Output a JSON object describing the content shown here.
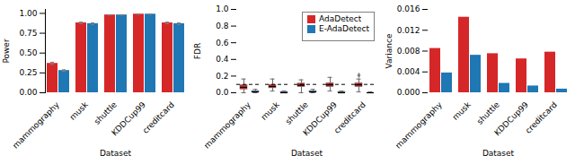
{
  "chart_data": [
    {
      "type": "bar",
      "categories": [
        "mammography",
        "musk",
        "shuttle",
        "KDDCup99",
        "creditcard"
      ],
      "series": [
        {
          "color": "#d62728",
          "values": [
            0.37,
            0.88,
            0.98,
            0.99,
            0.88
          ],
          "errors": [
            0.015,
            0.01,
            0.003,
            0.003,
            0.01
          ]
        },
        {
          "color": "#1f77b4",
          "values": [
            0.28,
            0.87,
            0.98,
            0.99,
            0.87
          ],
          "errors": [
            0.01,
            0.01,
            0.003,
            0.003,
            0.01
          ]
        }
      ],
      "xlabel": "Dataset",
      "ylabel": "Power",
      "ylim": [
        0,
        1.05
      ],
      "yticks": [
        {
          "value": 0,
          "label": "0.00"
        },
        0.25,
        {
          "value": 0.5,
          "label": "0.50"
        },
        0.75,
        {
          "value": 1,
          "label": "1.00"
        }
      ]
    },
    {
      "type": "box",
      "categories": [
        "mammography",
        "musk",
        "shuttle",
        "KDDCup99",
        "creditcard"
      ],
      "series": [
        {
          "name": "AdaDetect",
          "color": "#d62728",
          "medians": [
            0.065,
            0.075,
            0.09,
            0.095,
            0.095
          ],
          "q1": [
            0.04,
            0.055,
            0.07,
            0.07,
            0.07
          ],
          "q3": [
            0.09,
            0.095,
            0.11,
            0.115,
            0.115
          ],
          "whislo": [
            0.0,
            0.02,
            0.0,
            0.02,
            0.01
          ],
          "whishi": [
            0.165,
            0.165,
            0.155,
            0.185,
            0.165
          ],
          "fliers": [
            [],
            [],
            [],
            [],
            [
              0.21
            ]
          ]
        },
        {
          "name": "E-AdaDetect",
          "color": "#1f77b4",
          "medians": [
            0.01,
            0.0,
            0.01,
            0.0,
            0.0
          ],
          "q1": [
            0.005,
            0.0,
            0.005,
            0.0,
            0.0
          ],
          "q3": [
            0.02,
            0.01,
            0.02,
            0.01,
            0.0
          ],
          "whislo": [
            0.0,
            0.0,
            0.0,
            0.0,
            0.0
          ],
          "whishi": [
            0.04,
            0.02,
            0.04,
            0.02,
            0.01
          ],
          "fliers": [
            [],
            [],
            [],
            [],
            []
          ]
        }
      ],
      "reference_lines": [
        {
          "value": 0.1,
          "color": "black",
          "line_style": "dashed"
        }
      ],
      "xlabel": "Dataset",
      "ylabel": "FDR",
      "ylim": [
        0,
        1
      ],
      "yticks": [
        {
          "value": 0,
          "label": "0.0"
        },
        0.2,
        0.4,
        0.6,
        0.8,
        {
          "value": 1,
          "label": "1.0"
        }
      ],
      "legend": "upper right"
    },
    {
      "type": "bar",
      "categories": [
        "mammography",
        "musk",
        "shuttle",
        "KDDCup99",
        "creditcard"
      ],
      "series": [
        {
          "color": "#d62728",
          "values": [
            0.0085,
            0.0145,
            0.0075,
            0.0065,
            0.0078
          ]
        },
        {
          "color": "#1f77b4",
          "values": [
            0.0038,
            0.0072,
            0.0018,
            0.0013,
            0.0007
          ]
        }
      ],
      "xlabel": "Dataset",
      "ylabel": "Variance",
      "ylim": [
        0,
        0.016
      ],
      "yticks": [
        {
          "value": 0,
          "label": "0.000"
        },
        0.004,
        0.008,
        0.012,
        0.016
      ]
    }
  ]
}
